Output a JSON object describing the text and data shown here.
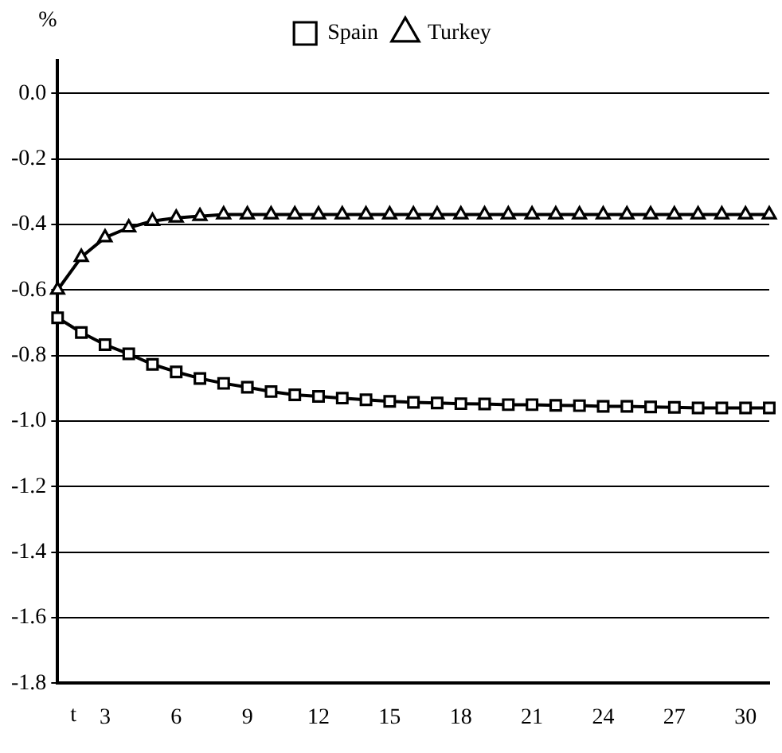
{
  "chart_data": {
    "type": "line",
    "xlabel": "t",
    "ylabel": "%",
    "categories": [
      null,
      null,
      "3",
      null,
      null,
      "6",
      null,
      null,
      "9",
      null,
      null,
      "12",
      null,
      null,
      "15",
      null,
      null,
      "18",
      null,
      null,
      "21",
      null,
      null,
      "24",
      null,
      null,
      "27",
      null,
      null,
      "30",
      null
    ],
    "series": [
      {
        "name": "Spain",
        "color": "#000000",
        "marker": "square",
        "values": [
          -0.685,
          -0.73,
          -0.767,
          -0.795,
          -0.827,
          -0.85,
          -0.87,
          -0.885,
          -0.897,
          -0.91,
          -0.92,
          -0.925,
          -0.93,
          -0.935,
          -0.94,
          -0.943,
          -0.945,
          -0.947,
          -0.948,
          -0.95,
          -0.95,
          -0.952,
          -0.953,
          -0.955,
          -0.955,
          -0.957,
          -0.958,
          -0.96,
          -0.96,
          -0.96,
          -0.96
        ]
      },
      {
        "name": "Turkey",
        "color": "#000000",
        "marker": "triangle",
        "values": [
          -0.6,
          -0.5,
          -0.44,
          -0.41,
          -0.39,
          -0.38,
          -0.375,
          -0.37,
          -0.37,
          -0.37,
          -0.37,
          -0.37,
          -0.37,
          -0.37,
          -0.37,
          -0.37,
          -0.37,
          -0.37,
          -0.37,
          -0.37,
          -0.37,
          -0.37,
          -0.37,
          -0.37,
          -0.37,
          -0.37,
          -0.37,
          -0.37,
          -0.37,
          -0.37,
          -0.37
        ]
      }
    ],
    "ylim": [
      -1.8,
      0.1
    ],
    "yticks": [
      {
        "value": 0,
        "label": "0.0"
      },
      {
        "value": -0.2,
        "label": "-0.2"
      },
      {
        "value": -0.4,
        "label": "-0.4"
      },
      {
        "value": -0.6,
        "label": "-0.6"
      },
      {
        "value": -0.8,
        "label": "-0.8"
      },
      {
        "value": -1,
        "label": "-1.0"
      },
      {
        "value": -1.2,
        "label": "-1.2"
      },
      {
        "value": -1.4,
        "label": "-1.4"
      },
      {
        "value": -1.6,
        "label": "-1.6"
      },
      {
        "value": -1.8,
        "label": "-1.8"
      }
    ],
    "grid": "y",
    "legend": "top",
    "line_style": "solid"
  }
}
